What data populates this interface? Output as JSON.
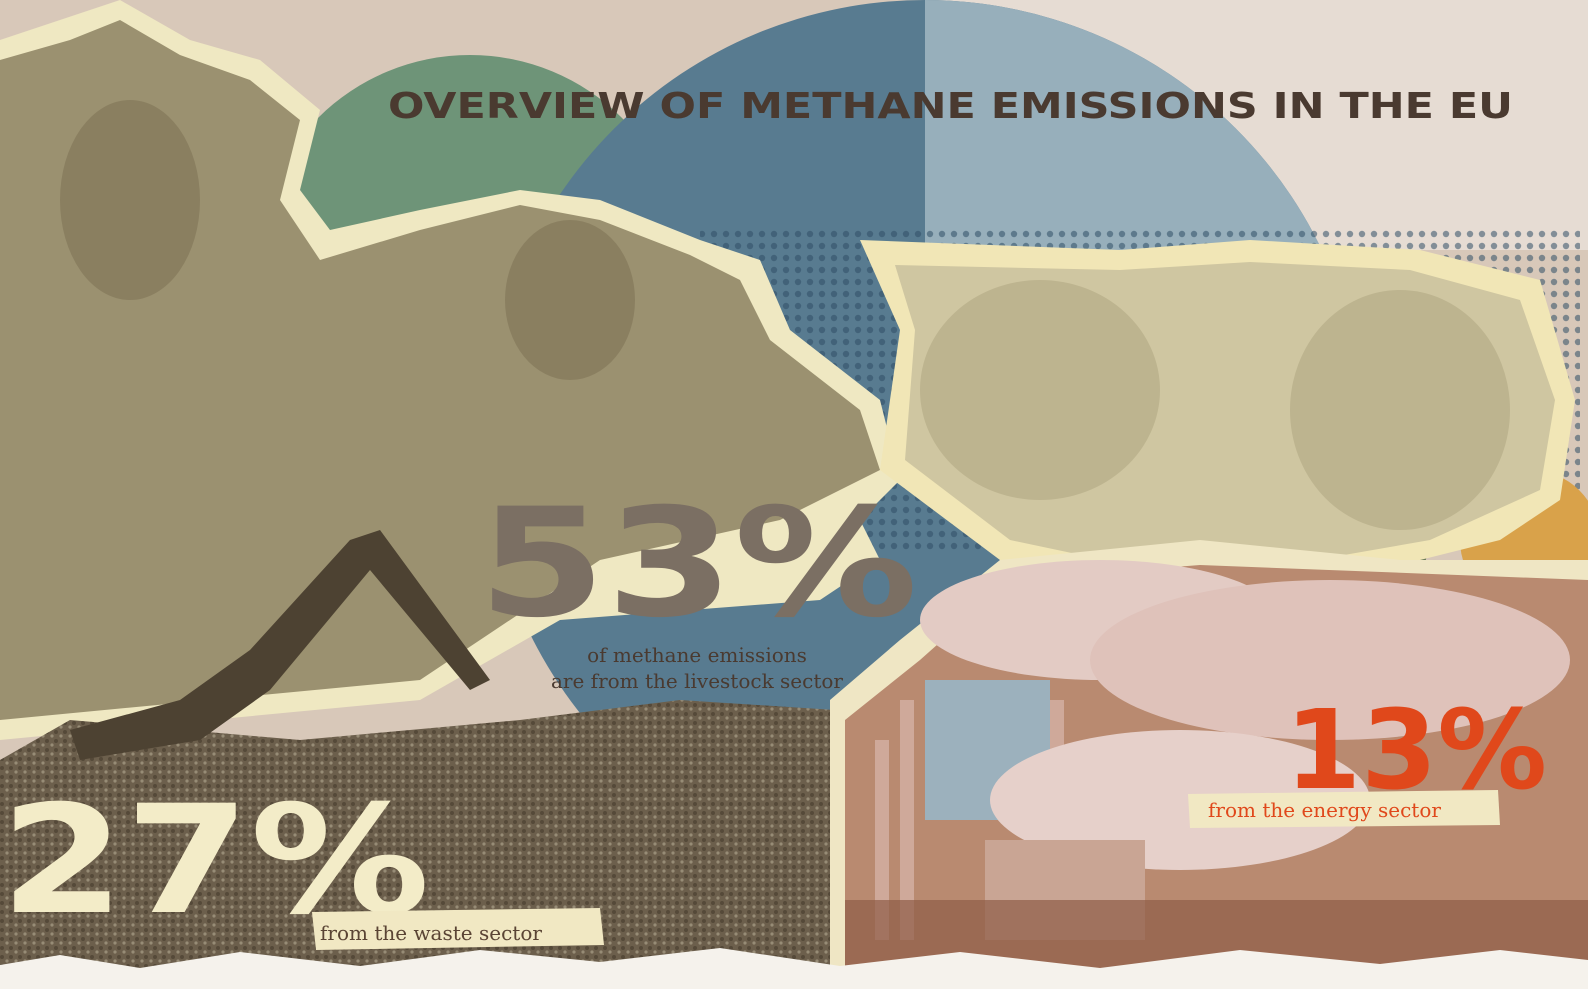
{
  "title": "OVERVIEW OF METHANE EMISSIONS IN THE EU",
  "stats": [
    {
      "value": "53%",
      "caption": [
        "of methane emissions",
        "are from the livestock sector"
      ]
    },
    {
      "value": "27%",
      "caption": [
        "from the waste sector"
      ]
    },
    {
      "value": "13%",
      "caption": [
        "from the energy sector"
      ]
    }
  ]
}
